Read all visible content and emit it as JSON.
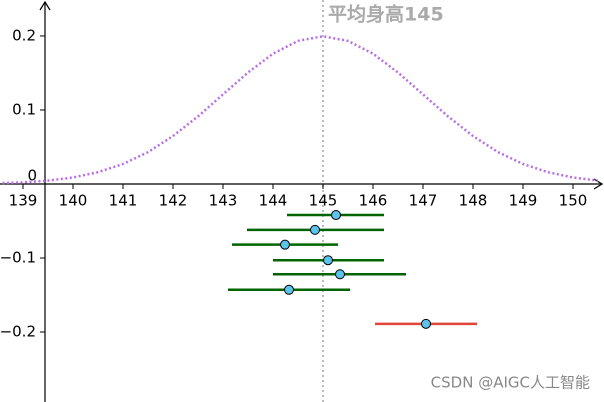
{
  "chart_data": {
    "type": "interval",
    "xlim": [
      138.54,
      150.62
    ],
    "ylim": [
      -0.2946,
      0.2486
    ],
    "xticks": [
      139,
      140,
      141,
      142,
      143,
      144,
      145,
      146,
      147,
      148,
      149,
      150
    ],
    "yticks": [
      {
        "value": -0.2,
        "label": "−0.2"
      },
      {
        "value": -0.1,
        "label": "−0.1"
      },
      0,
      0.1,
      0.2
    ],
    "curve": {
      "color": "#b86ee8",
      "x": [
        138.5,
        139,
        139.5,
        140,
        140.5,
        141,
        141.5,
        142,
        142.5,
        143,
        143.5,
        144,
        144.5,
        145,
        145.5,
        146,
        146.5,
        147,
        147.5,
        148,
        148.5,
        149,
        149.5,
        150,
        150.5
      ],
      "y": [
        0.001,
        0.0022,
        0.0045,
        0.0088,
        0.0159,
        0.027,
        0.0431,
        0.0648,
        0.0913,
        0.121,
        0.1506,
        0.176,
        0.1933,
        0.1995,
        0.1933,
        0.176,
        0.1506,
        0.121,
        0.0913,
        0.0648,
        0.0431,
        0.027,
        0.0159,
        0.0088,
        0.0045
      ]
    },
    "reference_line": {
      "x": 145,
      "label": "平均身高145"
    },
    "intervals": [
      {
        "y": -0.042,
        "center": 145.26,
        "low": 144.28,
        "high": 146.22,
        "color": "#006400"
      },
      {
        "y": -0.062,
        "center": 144.84,
        "low": 143.48,
        "high": 146.22,
        "color": "#006400"
      },
      {
        "y": -0.082,
        "center": 144.24,
        "low": 143.18,
        "high": 145.3,
        "color": "#006400"
      },
      {
        "y": -0.103,
        "center": 145.1,
        "low": 144.0,
        "high": 146.22,
        "color": "#006400"
      },
      {
        "y": -0.122,
        "center": 145.34,
        "low": 144.0,
        "high": 146.66,
        "color": "#006400"
      },
      {
        "y": -0.143,
        "center": 144.32,
        "low": 143.1,
        "high": 145.54,
        "color": "#006400"
      },
      {
        "y": -0.189,
        "center": 147.06,
        "low": 146.04,
        "high": 148.08,
        "color": "#e0453a"
      }
    ],
    "watermark": "CSDN @AIGC人工智能"
  }
}
